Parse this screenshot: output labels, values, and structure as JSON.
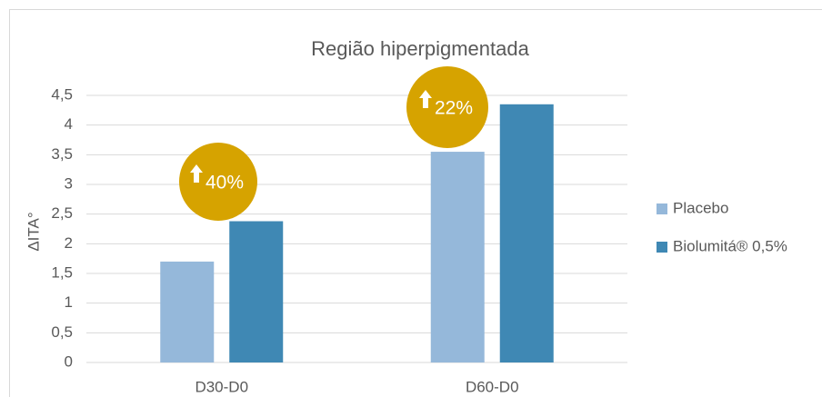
{
  "chart_data": {
    "type": "bar",
    "title": "Região hiperpigmentada",
    "y_label": "ΔITA°",
    "categories": [
      "D30-D0",
      "D60-D0"
    ],
    "series": [
      {
        "name": "Placebo",
        "color": "#95b8da",
        "values": [
          1.7,
          3.55
        ]
      },
      {
        "name": "Biolumitá® 0,5%",
        "color": "#3f88b4",
        "values": [
          2.38,
          4.35
        ]
      }
    ],
    "annotations": [
      "40%",
      "22%"
    ],
    "annotation_color": "#d6a300",
    "ylim": [
      0,
      4.5
    ],
    "yticks": [
      0,
      {
        "value": 0.5,
        "label": "0,5"
      },
      1,
      {
        "value": 1.5,
        "label": "1,5"
      },
      2,
      {
        "value": 2.5,
        "label": "2,5"
      },
      3,
      {
        "value": 3.5,
        "label": "3,5"
      },
      4,
      {
        "value": 4.5,
        "label": "4,5"
      }
    ],
    "grid": true,
    "legend": "right"
  }
}
